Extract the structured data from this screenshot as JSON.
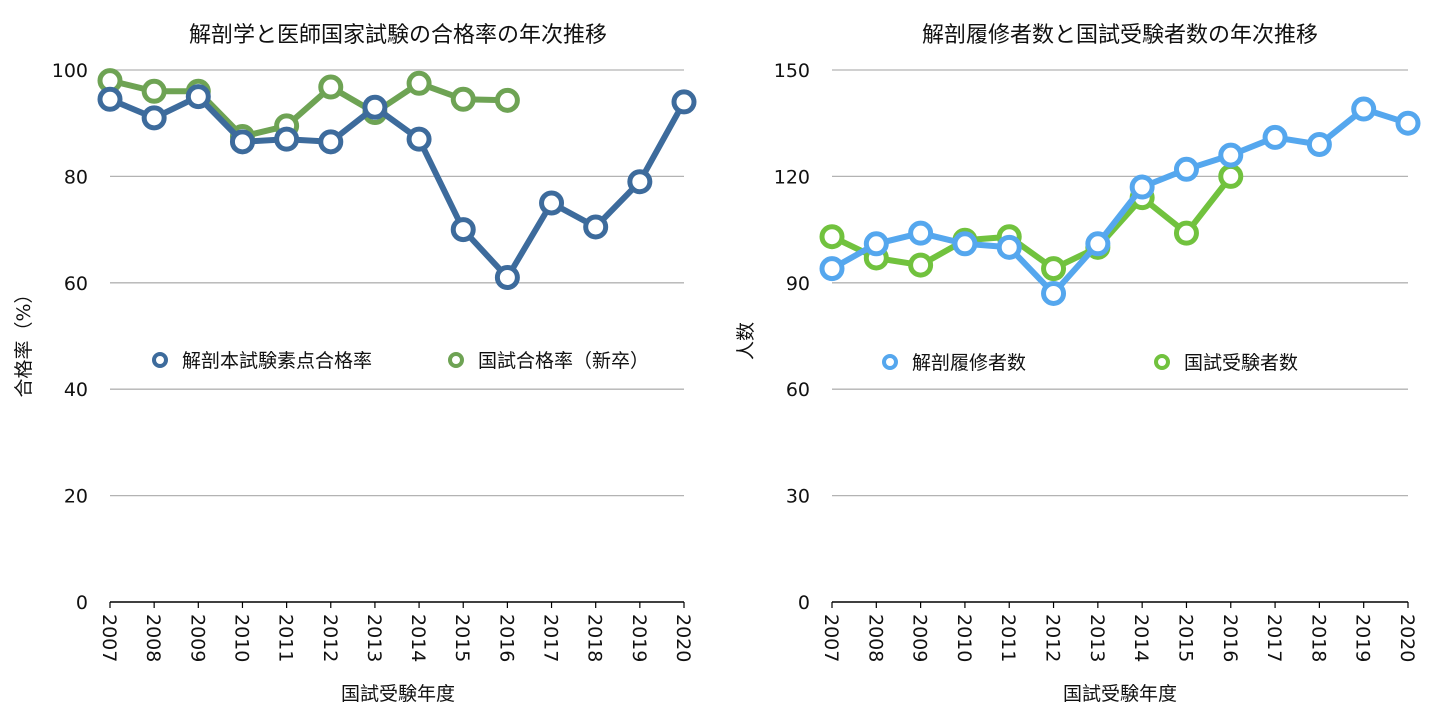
{
  "chart_data": [
    {
      "type": "line",
      "title": "解剖学と医師国家試験の合格率の年次推移",
      "xlabel": "国試受験年度",
      "ylabel": "合格率（%）",
      "categories": [
        "2007",
        "2008",
        "2009",
        "2010",
        "2011",
        "2012",
        "2013",
        "2014",
        "2015",
        "2016",
        "2017",
        "2018",
        "2019",
        "2020"
      ],
      "ylim": [
        0,
        100
      ],
      "yticks": [
        0,
        20,
        40,
        60,
        80,
        100
      ],
      "grid": true,
      "legend_position": "center",
      "series": [
        {
          "name": "解剖本試験素点合格率",
          "color": "#3d6b9c",
          "values": [
            94.5,
            91,
            95,
            86.5,
            87,
            86.5,
            93,
            87,
            70,
            61,
            75,
            70.5,
            79,
            94
          ]
        },
        {
          "name": "国試合格率（新卒）",
          "color": "#6ea354",
          "values": [
            98,
            96,
            96,
            87.5,
            89.5,
            96.8,
            92,
            97.5,
            94.5,
            94.3,
            null,
            null,
            null,
            null
          ]
        }
      ]
    },
    {
      "type": "line",
      "title": "解剖履修者数と国試受験者数の年次推移",
      "xlabel": "国試受験年度",
      "ylabel": "人数",
      "categories": [
        "2007",
        "2008",
        "2009",
        "2010",
        "2011",
        "2012",
        "2013",
        "2014",
        "2015",
        "2016",
        "2017",
        "2018",
        "2019",
        "2020"
      ],
      "ylim": [
        0,
        150
      ],
      "yticks": [
        0,
        30,
        60,
        90,
        120,
        150
      ],
      "grid": true,
      "legend_position": "center",
      "series": [
        {
          "name": "解剖履修者数",
          "color": "#55a7ee",
          "values": [
            94,
            101,
            104,
            101,
            100,
            87,
            101,
            117,
            122,
            126,
            131,
            129,
            139,
            135
          ]
        },
        {
          "name": "国試受験者数",
          "color": "#71c23e",
          "values": [
            103,
            97,
            95,
            102,
            103,
            94,
            100,
            114,
            104,
            120,
            null,
            null,
            null,
            null
          ]
        }
      ]
    }
  ]
}
